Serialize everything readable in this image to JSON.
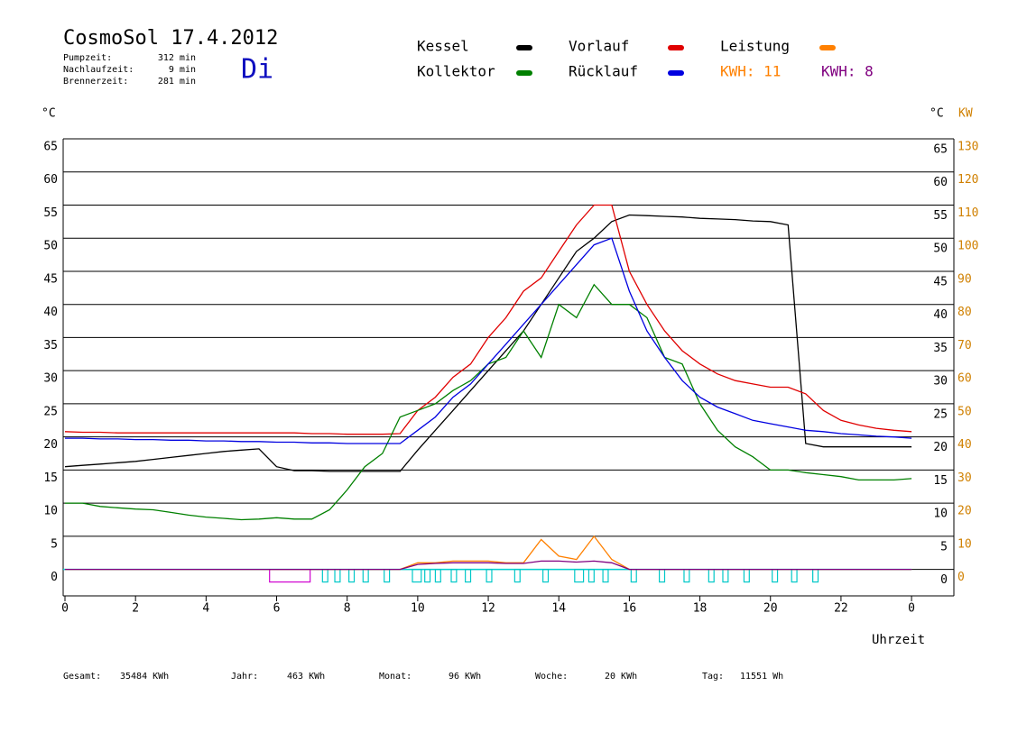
{
  "chart_data": {
    "type": "line",
    "title": "CosmoSol 17.4.2012",
    "weekday": "Di",
    "info": [
      {
        "label": "Pumpzeit:",
        "value": "312 min"
      },
      {
        "label": "Nachlaufzeit:",
        "value": "9 min"
      },
      {
        "label": "Brennerzeit:",
        "value": "281 min"
      }
    ],
    "y_unit": "°C",
    "y2_unit_c": "°C",
    "y2_unit": "KW",
    "xlabel": "Uhrzeit",
    "kwh_labels": [
      {
        "label": "KWH: 11",
        "color": "#ff8000"
      },
      {
        "label": "KWH: 8",
        "color": "#800080"
      }
    ],
    "x": [
      0,
      0.5,
      1,
      1.5,
      2,
      2.5,
      3,
      3.5,
      4,
      4.5,
      5,
      5.5,
      6,
      6.5,
      7,
      7.5,
      8,
      8.5,
      9,
      9.5,
      10,
      10.5,
      11,
      11.5,
      12,
      12.5,
      13,
      13.5,
      14,
      14.5,
      15,
      15.5,
      16,
      16.5,
      17,
      17.5,
      18,
      18.5,
      19,
      19.5,
      20,
      20.5,
      21,
      21.5,
      22,
      22.5,
      23,
      23.5,
      24
    ],
    "series": [
      {
        "name": "Kessel",
        "color": "#000000",
        "values": [
          15.5,
          15.7,
          15.9,
          16.1,
          16.3,
          16.6,
          16.9,
          17.2,
          17.5,
          17.8,
          18,
          18.2,
          15.5,
          14.9,
          14.9,
          14.8,
          14.8,
          14.8,
          14.8,
          14.8,
          18,
          21,
          24,
          27,
          30,
          33,
          36,
          40,
          44,
          48,
          50,
          52.5,
          53.5,
          53.4,
          53.3,
          53.2,
          53,
          52.9,
          52.8,
          52.6,
          52.5,
          52,
          19,
          18.5,
          18.5,
          18.5,
          18.5,
          18.5,
          18.5
        ]
      },
      {
        "name": "Vorlauf",
        "color": "#e00000",
        "values": [
          20.8,
          20.7,
          20.7,
          20.6,
          20.6,
          20.6,
          20.6,
          20.6,
          20.6,
          20.6,
          20.6,
          20.6,
          20.6,
          20.6,
          20.5,
          20.5,
          20.4,
          20.4,
          20.4,
          20.5,
          24,
          26,
          29,
          31,
          35,
          38,
          42,
          44,
          48,
          52,
          55,
          55,
          45,
          40,
          36,
          33,
          31,
          29.5,
          28.5,
          28,
          27.5,
          27.5,
          26.5,
          24,
          22.5,
          21.8,
          21.3,
          21,
          20.8
        ]
      },
      {
        "name": "Leistung",
        "color": "#ff8000",
        "axis": "y2",
        "values": [
          0,
          0,
          0,
          0,
          0,
          0,
          0,
          0,
          0,
          0,
          0,
          0,
          0,
          0,
          0,
          0,
          0,
          0,
          0,
          0,
          2,
          2,
          2.5,
          2.5,
          2.5,
          2,
          2,
          9,
          4,
          3,
          10,
          3,
          0,
          0,
          0,
          0,
          0,
          0,
          0,
          0,
          0,
          0,
          0,
          0,
          0,
          0,
          0,
          0,
          0
        ]
      },
      {
        "name": "Kollektor",
        "color": "#008000",
        "values": [
          10,
          10,
          9.5,
          9.3,
          9.1,
          9,
          8.6,
          8.2,
          7.9,
          7.7,
          7.5,
          7.6,
          7.8,
          7.6,
          7.6,
          9,
          12,
          15.5,
          17.5,
          23,
          24,
          25,
          27,
          28.5,
          31,
          32,
          36,
          32,
          40,
          38,
          43,
          40,
          40,
          38,
          32,
          31,
          25,
          21,
          18.5,
          17,
          15,
          15,
          14.6,
          14.3,
          14,
          13.5,
          13.5,
          13.5,
          13.7
        ]
      },
      {
        "name": "Rücklauf",
        "color": "#0000e0",
        "values": [
          19.8,
          19.8,
          19.7,
          19.7,
          19.6,
          19.6,
          19.5,
          19.5,
          19.4,
          19.4,
          19.3,
          19.3,
          19.2,
          19.2,
          19.1,
          19.1,
          19,
          19,
          19,
          19,
          21,
          23,
          26,
          28,
          31,
          34,
          37,
          40,
          43,
          46,
          49,
          50,
          42,
          36,
          32,
          28.5,
          26,
          24.5,
          23.5,
          22.5,
          22,
          21.5,
          21,
          20.8,
          20.5,
          20.3,
          20.1,
          20,
          19.8
        ]
      },
      {
        "name": "KWH: 8",
        "color": "#800080",
        "axis": "y2",
        "values": [
          0,
          0,
          0,
          0,
          0,
          0,
          0,
          0,
          0,
          0,
          0,
          0,
          0,
          0,
          0,
          0,
          0,
          0,
          0,
          0,
          1.5,
          1.8,
          2,
          2,
          2,
          1.8,
          1.8,
          2.5,
          2.5,
          2.2,
          2.5,
          2,
          0,
          0,
          0,
          0,
          0,
          0,
          0,
          0,
          0,
          0,
          0,
          0,
          0,
          0,
          0,
          0,
          0
        ]
      }
    ],
    "pump_periods": [
      [
        5.8,
        6.95
      ],
      [
        7.3,
        7.45
      ],
      [
        7.65,
        7.8
      ],
      [
        8.05,
        8.2
      ],
      [
        8.45,
        8.6
      ],
      [
        9.05,
        9.2
      ],
      [
        9.85,
        10.1
      ],
      [
        10.2,
        10.35
      ],
      [
        10.5,
        10.65
      ],
      [
        10.95,
        11.1
      ],
      [
        11.35,
        11.5
      ],
      [
        11.95,
        12.1
      ],
      [
        12.75,
        12.9
      ],
      [
        13.55,
        13.7
      ],
      [
        14.45,
        14.7
      ],
      [
        14.85,
        15.0
      ],
      [
        15.25,
        15.4
      ],
      [
        16.05,
        16.2
      ],
      [
        16.85,
        17.0
      ],
      [
        17.55,
        17.7
      ],
      [
        18.25,
        18.4
      ],
      [
        18.65,
        18.8
      ],
      [
        19.25,
        19.4
      ],
      [
        20.05,
        20.2
      ],
      [
        20.6,
        20.75
      ],
      [
        21.2,
        21.35
      ]
    ],
    "xlim": [
      0,
      25.2
    ],
    "xticks": [
      0,
      2,
      4,
      6,
      8,
      10,
      12,
      14,
      16,
      18,
      20,
      22,
      {
        "value": 24,
        "label": "0"
      }
    ],
    "ylim": [
      -4,
      65
    ],
    "yticks": [
      0,
      5,
      10,
      15,
      20,
      25,
      30,
      35,
      40,
      45,
      50,
      55,
      60,
      65
    ],
    "y2lim": [
      -8,
      130
    ],
    "y2ticks": [
      0,
      10,
      20,
      30,
      40,
      50,
      60,
      70,
      80,
      90,
      100,
      110,
      120,
      130
    ],
    "grid": true,
    "footer": [
      {
        "label": "Gesamt:",
        "value": "35484 KWh"
      },
      {
        "label": "Jahr:",
        "value": "463 KWh"
      },
      {
        "label": "Monat:",
        "value": "96 KWh"
      },
      {
        "label": "Woche:",
        "value": "20 KWh"
      },
      {
        "label": "Tag:",
        "value": "11551 Wh"
      }
    ]
  }
}
